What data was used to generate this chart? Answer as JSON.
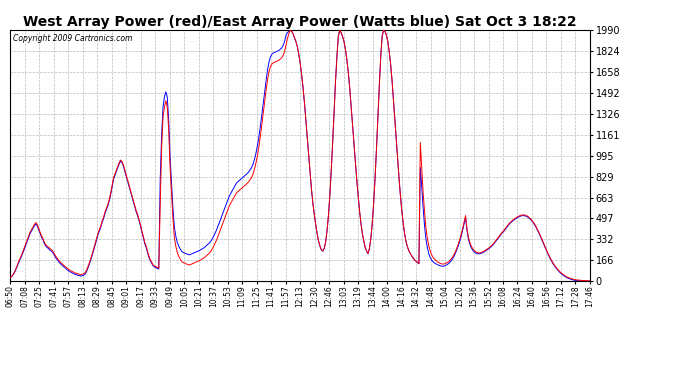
{
  "title": "West Array Power (red)/East Array Power (Watts blue) Sat Oct 3 18:22",
  "copyright": "Copyright 2009 Cartronics.com",
  "yticks": [
    0.0,
    165.8,
    331.6,
    497.4,
    663.2,
    829.0,
    994.8,
    1160.6,
    1326.4,
    1492.2,
    1658.0,
    1823.8,
    1989.7
  ],
  "xtick_labels": [
    "06:50",
    "07:08",
    "07:25",
    "07:41",
    "07:57",
    "08:13",
    "08:29",
    "08:45",
    "09:01",
    "09:17",
    "09:33",
    "09:49",
    "10:05",
    "10:21",
    "10:37",
    "10:53",
    "11:09",
    "11:25",
    "11:41",
    "11:57",
    "12:13",
    "12:30",
    "12:46",
    "13:03",
    "13:19",
    "13:44",
    "14:00",
    "14:16",
    "14:32",
    "14:48",
    "15:04",
    "15:20",
    "15:36",
    "15:52",
    "16:08",
    "16:24",
    "16:40",
    "16:56",
    "17:12",
    "17:28",
    "17:46"
  ],
  "background_color": "#ffffff",
  "plot_bg_color": "#ffffff",
  "grid_color": "#bbbbbb",
  "line_color_red": "#ff0000",
  "line_color_blue": "#0000ff",
  "title_fontsize": 10,
  "ymax": 1989.7,
  "ymin": 0.0,
  "red_data": [
    30,
    40,
    55,
    75,
    100,
    130,
    160,
    185,
    210,
    240,
    270,
    300,
    330,
    360,
    390,
    410,
    430,
    450,
    465,
    450,
    420,
    390,
    360,
    340,
    310,
    290,
    280,
    270,
    260,
    250,
    240,
    220,
    200,
    185,
    170,
    155,
    145,
    135,
    125,
    115,
    105,
    95,
    88,
    82,
    76,
    70,
    65,
    62,
    58,
    55,
    52,
    55,
    60,
    70,
    90,
    120,
    150,
    185,
    220,
    260,
    300,
    340,
    380,
    410,
    440,
    480,
    510,
    550,
    580,
    610,
    650,
    700,
    760,
    820,
    850,
    880,
    910,
    940,
    960,
    950,
    920,
    880,
    840,
    800,
    760,
    720,
    680,
    640,
    600,
    560,
    530,
    490,
    450,
    400,
    360,
    310,
    280,
    240,
    200,
    170,
    150,
    130,
    120,
    115,
    110,
    105,
    600,
    1050,
    1300,
    1380,
    1430,
    1380,
    1200,
    900,
    700,
    500,
    350,
    280,
    230,
    200,
    180,
    160,
    150,
    145,
    140,
    135,
    130,
    130,
    135,
    140,
    145,
    150,
    155,
    160,
    165,
    172,
    178,
    185,
    195,
    205,
    215,
    225,
    240,
    260,
    280,
    305,
    330,
    360,
    390,
    420,
    450,
    480,
    510,
    540,
    570,
    600,
    620,
    640,
    660,
    680,
    700,
    710,
    720,
    730,
    740,
    750,
    760,
    770,
    780,
    795,
    810,
    830,
    860,
    900,
    950,
    1010,
    1080,
    1160,
    1250,
    1340,
    1430,
    1520,
    1600,
    1660,
    1700,
    1720,
    1730,
    1735,
    1740,
    1745,
    1750,
    1760,
    1770,
    1790,
    1820,
    1870,
    1920,
    1960,
    1989,
    1980,
    1960,
    1930,
    1900,
    1860,
    1800,
    1730,
    1640,
    1540,
    1420,
    1280,
    1140,
    1000,
    860,
    730,
    620,
    530,
    450,
    380,
    320,
    280,
    250,
    240,
    260,
    310,
    400,
    520,
    680,
    880,
    1100,
    1340,
    1580,
    1780,
    1940,
    1989,
    1970,
    1940,
    1900,
    1840,
    1760,
    1660,
    1540,
    1400,
    1250,
    1100,
    950,
    810,
    680,
    560,
    460,
    380,
    320,
    270,
    240,
    220,
    260,
    340,
    460,
    620,
    820,
    1050,
    1300,
    1550,
    1780,
    1940,
    1989,
    1980,
    1950,
    1900,
    1820,
    1720,
    1590,
    1440,
    1280,
    1120,
    960,
    810,
    670,
    550,
    450,
    370,
    310,
    270,
    240,
    220,
    200,
    185,
    170,
    160,
    150,
    140,
    1100,
    900,
    700,
    550,
    420,
    340,
    280,
    240,
    210,
    190,
    175,
    165,
    155,
    148,
    142,
    138,
    135,
    138,
    142,
    148,
    155,
    165,
    178,
    195,
    215,
    240,
    268,
    300,
    335,
    375,
    420,
    470,
    520,
    420,
    350,
    310,
    280,
    260,
    245,
    235,
    228,
    225,
    225,
    228,
    232,
    238,
    245,
    252,
    260,
    268,
    278,
    290,
    302,
    316,
    330,
    345,
    360,
    375,
    390,
    400,
    415,
    430,
    445,
    460,
    470,
    480,
    490,
    498,
    505,
    512,
    518,
    522,
    525,
    526,
    524,
    520,
    514,
    505,
    495,
    482,
    467,
    450,
    430,
    408,
    385,
    360,
    334,
    307,
    280,
    254,
    228,
    205,
    182,
    162,
    143,
    126,
    111,
    97,
    85,
    73,
    63,
    54,
    46,
    39,
    33,
    28,
    24,
    20,
    17,
    14,
    12,
    10,
    9,
    8,
    7,
    6,
    5,
    5,
    4,
    4,
    3
  ],
  "blue_data": [
    28,
    38,
    52,
    70,
    95,
    122,
    150,
    175,
    200,
    228,
    258,
    288,
    318,
    348,
    378,
    398,
    418,
    438,
    452,
    440,
    410,
    380,
    350,
    330,
    300,
    280,
    268,
    258,
    248,
    238,
    228,
    208,
    188,
    173,
    158,
    143,
    133,
    123,
    113,
    103,
    93,
    83,
    77,
    71,
    65,
    59,
    54,
    51,
    47,
    44,
    41,
    44,
    49,
    59,
    79,
    108,
    138,
    173,
    208,
    248,
    288,
    328,
    368,
    398,
    428,
    468,
    498,
    538,
    568,
    598,
    638,
    688,
    748,
    808,
    840,
    870,
    900,
    930,
    950,
    940,
    910,
    870,
    830,
    790,
    750,
    710,
    670,
    630,
    590,
    550,
    520,
    480,
    440,
    390,
    350,
    300,
    270,
    230,
    190,
    162,
    142,
    122,
    112,
    107,
    102,
    97,
    800,
    1150,
    1380,
    1460,
    1500,
    1460,
    1280,
    980,
    780,
    580,
    430,
    360,
    310,
    280,
    260,
    240,
    230,
    225,
    220,
    215,
    210,
    210,
    215,
    220,
    225,
    230,
    235,
    240,
    245,
    252,
    258,
    265,
    275,
    285,
    295,
    305,
    320,
    340,
    360,
    385,
    410,
    440,
    470,
    500,
    530,
    560,
    590,
    620,
    650,
    678,
    698,
    718,
    738,
    758,
    778,
    788,
    798,
    808,
    818,
    828,
    838,
    848,
    858,
    873,
    888,
    908,
    938,
    978,
    1028,
    1088,
    1158,
    1238,
    1328,
    1418,
    1508,
    1598,
    1678,
    1738,
    1778,
    1798,
    1808,
    1813,
    1818,
    1823,
    1828,
    1838,
    1848,
    1868,
    1898,
    1948,
    1969,
    1980,
    1989,
    1978,
    1958,
    1928,
    1898,
    1858,
    1798,
    1728,
    1638,
    1538,
    1418,
    1278,
    1138,
    998,
    858,
    728,
    618,
    528,
    448,
    378,
    318,
    278,
    248,
    238,
    258,
    308,
    398,
    518,
    678,
    878,
    1098,
    1338,
    1578,
    1778,
    1938,
    1989,
    1968,
    1938,
    1898,
    1838,
    1758,
    1658,
    1538,
    1398,
    1248,
    1098,
    948,
    808,
    678,
    558,
    458,
    378,
    318,
    268,
    238,
    218,
    258,
    338,
    458,
    618,
    818,
    1048,
    1298,
    1548,
    1778,
    1938,
    1989,
    1978,
    1948,
    1898,
    1818,
    1718,
    1588,
    1438,
    1278,
    1118,
    958,
    808,
    668,
    548,
    448,
    368,
    308,
    268,
    238,
    218,
    198,
    183,
    168,
    158,
    148,
    138,
    900,
    750,
    580,
    440,
    330,
    268,
    218,
    188,
    168,
    155,
    145,
    138,
    132,
    127,
    123,
    120,
    118,
    121,
    126,
    132,
    140,
    151,
    164,
    181,
    201,
    226,
    254,
    286,
    321,
    361,
    406,
    456,
    506,
    406,
    336,
    296,
    266,
    248,
    233,
    225,
    219,
    217,
    218,
    221,
    226,
    232,
    239,
    246,
    254,
    262,
    272,
    284,
    296,
    310,
    324,
    339,
    354,
    369,
    384,
    394,
    409,
    424,
    439,
    454,
    464,
    474,
    484,
    492,
    499,
    506,
    512,
    516,
    519,
    520,
    518,
    514,
    508,
    499,
    489,
    476,
    461,
    444,
    424,
    402,
    379,
    354,
    328,
    301,
    274,
    248,
    222,
    199,
    176,
    156,
    137,
    120,
    105,
    91,
    79,
    67,
    57,
    48,
    40,
    33,
    27,
    22,
    18,
    14,
    11,
    8,
    6,
    5,
    4,
    3,
    2,
    2,
    1,
    1,
    1,
    1,
    1
  ]
}
